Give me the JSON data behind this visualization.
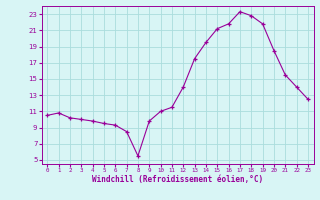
{
  "x": [
    0,
    1,
    2,
    3,
    4,
    5,
    6,
    7,
    8,
    9,
    10,
    11,
    12,
    13,
    14,
    15,
    16,
    17,
    18,
    19,
    20,
    21,
    22,
    23
  ],
  "y": [
    10.5,
    10.8,
    10.2,
    10.0,
    9.8,
    9.5,
    9.3,
    8.5,
    5.5,
    9.8,
    11.0,
    11.5,
    14.0,
    17.5,
    19.5,
    21.2,
    21.8,
    23.3,
    22.8,
    21.8,
    18.5,
    15.5,
    14.0,
    12.5
  ],
  "line_color": "#990099",
  "marker": "+",
  "marker_size": 3,
  "bg_color": "#d8f5f5",
  "grid_color": "#aadddd",
  "xlabel": "Windchill (Refroidissement éolien,°C)",
  "xlim": [
    0,
    23
  ],
  "ylim": [
    5,
    23
  ],
  "yticks": [
    5,
    7,
    9,
    11,
    13,
    15,
    17,
    19,
    21,
    23
  ],
  "xticks": [
    0,
    1,
    2,
    3,
    4,
    5,
    6,
    7,
    8,
    9,
    10,
    11,
    12,
    13,
    14,
    15,
    16,
    17,
    18,
    19,
    20,
    21,
    22,
    23
  ]
}
